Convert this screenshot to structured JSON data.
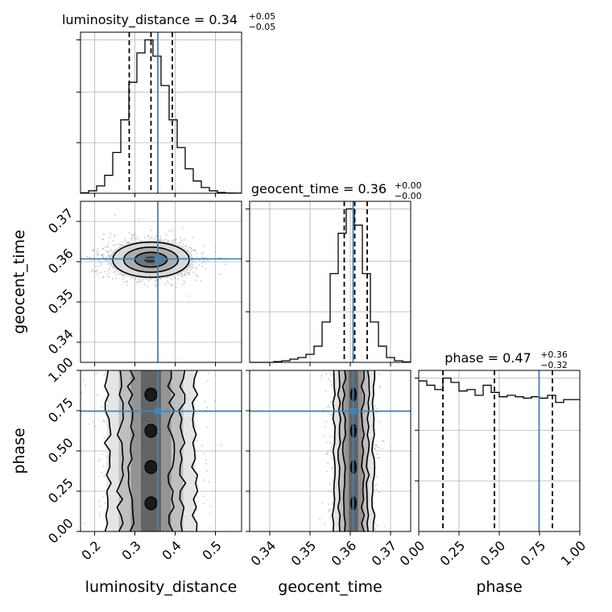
{
  "colors": {
    "truth": "#4682b4",
    "hist": "#000000",
    "grid": "#b0b0b0",
    "points": "#7f7f7f"
  },
  "chart_data": {
    "type": "corner",
    "parameters": [
      "luminosity_distance",
      "geocent_time",
      "phase"
    ],
    "axis_labels": {
      "luminosity_distance": "luminosity_distance",
      "geocent_time": "geocent_time",
      "phase": "phase"
    },
    "ranges": {
      "luminosity_distance": [
        0.165,
        0.565
      ],
      "geocent_time": [
        0.335,
        0.375
      ],
      "phase": [
        0.0,
        1.0
      ]
    },
    "ticks": {
      "luminosity_distance": {
        "values": [
          0.2,
          0.3,
          0.4,
          0.5
        ],
        "labels": [
          "0.2",
          "0.3",
          "0.4",
          "0.5"
        ]
      },
      "geocent_time": {
        "values": [
          0.34,
          0.35,
          0.36,
          0.37
        ],
        "labels": [
          "0.34",
          "0.35",
          "0.36",
          "0.37"
        ]
      },
      "phase": {
        "values": [
          0.0,
          0.25,
          0.5,
          0.75,
          1.0
        ],
        "labels": [
          "0.00",
          "0.25",
          "0.50",
          "0.75",
          "1.00"
        ]
      }
    },
    "truths": {
      "luminosity_distance": 0.357,
      "geocent_time": 0.3607,
      "phase": 0.747
    },
    "titles": {
      "luminosity_distance": {
        "text": "luminosity_distance = 0.34",
        "sup": "+0.05",
        "sub": "−0.05"
      },
      "geocent_time": {
        "text": "geocent_time = 0.36",
        "sup": "+0.00",
        "sub": "−0.00"
      },
      "phase": {
        "text": "phase = 0.47",
        "sup": "+0.36",
        "sub": "−0.32"
      }
    },
    "quantiles": {
      "luminosity_distance": [
        0.286,
        0.34,
        0.393
      ],
      "geocent_time": [
        0.3585,
        0.3611,
        0.3642
      ],
      "phase": [
        0.15,
        0.47,
        0.83
      ]
    },
    "histograms": {
      "luminosity_distance": {
        "bin_edges": [
          0.165,
          0.185,
          0.205,
          0.225,
          0.245,
          0.265,
          0.285,
          0.305,
          0.325,
          0.345,
          0.365,
          0.385,
          0.405,
          0.425,
          0.445,
          0.465,
          0.485,
          0.505,
          0.525,
          0.545,
          0.565
        ],
        "counts": [
          0.3,
          1.5,
          4.5,
          11,
          25,
          45,
          68,
          86,
          94,
          84,
          66,
          45,
          28,
          15,
          7.5,
          3.5,
          1.5,
          0.5,
          0.2,
          0.1
        ]
      },
      "geocent_time": {
        "bin_edges": [
          0.335,
          0.337,
          0.339,
          0.341,
          0.343,
          0.345,
          0.347,
          0.349,
          0.351,
          0.353,
          0.355,
          0.357,
          0.359,
          0.361,
          0.363,
          0.365,
          0.367,
          0.369,
          0.371,
          0.373,
          0.375
        ],
        "counts": [
          0,
          0,
          0,
          0.5,
          1,
          2,
          3,
          5,
          10,
          25,
          55,
          80,
          95,
          85,
          55,
          25,
          10,
          3,
          1,
          0.3
        ]
      },
      "phase": {
        "bin_edges": [
          0.0,
          0.05,
          0.1,
          0.15,
          0.2,
          0.25,
          0.3,
          0.35,
          0.4,
          0.45,
          0.5,
          0.55,
          0.6,
          0.65,
          0.7,
          0.75,
          0.8,
          0.85,
          0.9,
          0.95,
          1.0
        ],
        "counts": [
          105,
          102,
          99,
          107,
          104,
          98,
          99,
          95,
          102,
          97,
          94,
          95,
          94,
          93,
          94,
          93,
          95,
          90,
          92,
          92
        ]
      }
    },
    "pairs": [
      {
        "x": "luminosity_distance",
        "y": "geocent_time",
        "center": [
          0.34,
          0.3605
        ],
        "sigma": [
          0.05,
          0.0023
        ]
      },
      {
        "x": "luminosity_distance",
        "y": "phase",
        "center": [
          0.34,
          0.5
        ],
        "sigma": [
          0.05,
          0.5
        ]
      },
      {
        "x": "geocent_time",
        "y": "phase",
        "center": [
          0.3608,
          0.5
        ],
        "sigma": [
          0.0023,
          0.5
        ]
      }
    ]
  }
}
